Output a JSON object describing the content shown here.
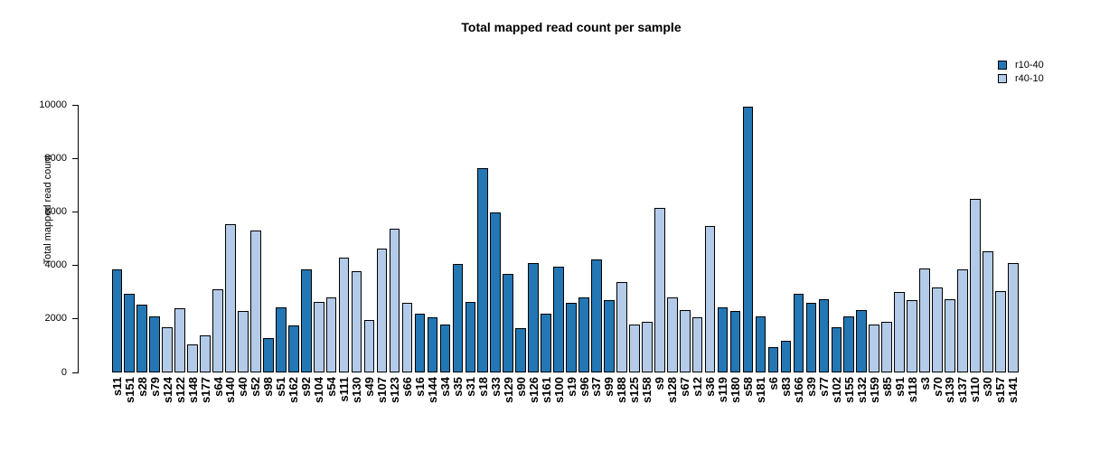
{
  "chart_data": {
    "type": "bar",
    "title": "Total mapped read count per sample",
    "xlabel": "",
    "ylabel": "Total mapped read count",
    "ylim": [
      0,
      10000
    ],
    "yticks": [
      0,
      2000,
      4000,
      6000,
      8000,
      10000
    ],
    "grid": false,
    "legend_position": "top-right",
    "bar_border_color": "#000000",
    "series": [
      {
        "name": "r10-40",
        "color": "#2377b4"
      },
      {
        "name": "r40-10",
        "color": "#b3cbe8"
      }
    ],
    "bars": [
      {
        "sample": "s11",
        "value": 3850,
        "series": "r10-40"
      },
      {
        "sample": "s151",
        "value": 2950,
        "series": "r10-40"
      },
      {
        "sample": "s28",
        "value": 2550,
        "series": "r10-40"
      },
      {
        "sample": "s79",
        "value": 2100,
        "series": "r10-40"
      },
      {
        "sample": "s124",
        "value": 1700,
        "series": "r40-10"
      },
      {
        "sample": "s122",
        "value": 2400,
        "series": "r40-10"
      },
      {
        "sample": "s148",
        "value": 1050,
        "series": "r40-10"
      },
      {
        "sample": "s177",
        "value": 1400,
        "series": "r40-10"
      },
      {
        "sample": "s64",
        "value": 3100,
        "series": "r40-10"
      },
      {
        "sample": "s140",
        "value": 5550,
        "series": "r40-10"
      },
      {
        "sample": "s40",
        "value": 2300,
        "series": "r40-10"
      },
      {
        "sample": "s52",
        "value": 5300,
        "series": "r40-10"
      },
      {
        "sample": "s98",
        "value": 1300,
        "series": "r10-40"
      },
      {
        "sample": "s51",
        "value": 2450,
        "series": "r10-40"
      },
      {
        "sample": "s162",
        "value": 1750,
        "series": "r10-40"
      },
      {
        "sample": "s92",
        "value": 3850,
        "series": "r10-40"
      },
      {
        "sample": "s104",
        "value": 2650,
        "series": "r40-10"
      },
      {
        "sample": "s54",
        "value": 2800,
        "series": "r40-10"
      },
      {
        "sample": "s111",
        "value": 4300,
        "series": "r40-10"
      },
      {
        "sample": "s130",
        "value": 3800,
        "series": "r40-10"
      },
      {
        "sample": "s49",
        "value": 1950,
        "series": "r40-10"
      },
      {
        "sample": "s107",
        "value": 4650,
        "series": "r40-10"
      },
      {
        "sample": "s123",
        "value": 5400,
        "series": "r40-10"
      },
      {
        "sample": "s66",
        "value": 2600,
        "series": "r40-10"
      },
      {
        "sample": "s16",
        "value": 2200,
        "series": "r10-40"
      },
      {
        "sample": "s144",
        "value": 2050,
        "series": "r10-40"
      },
      {
        "sample": "s34",
        "value": 1800,
        "series": "r10-40"
      },
      {
        "sample": "s35",
        "value": 4050,
        "series": "r10-40"
      },
      {
        "sample": "s31",
        "value": 2650,
        "series": "r10-40"
      },
      {
        "sample": "s18",
        "value": 7650,
        "series": "r10-40"
      },
      {
        "sample": "s33",
        "value": 6000,
        "series": "r10-40"
      },
      {
        "sample": "s129",
        "value": 3700,
        "series": "r10-40"
      },
      {
        "sample": "s90",
        "value": 1650,
        "series": "r10-40"
      },
      {
        "sample": "s126",
        "value": 4100,
        "series": "r10-40"
      },
      {
        "sample": "s161",
        "value": 2200,
        "series": "r10-40"
      },
      {
        "sample": "s100",
        "value": 3950,
        "series": "r10-40"
      },
      {
        "sample": "s19",
        "value": 2600,
        "series": "r10-40"
      },
      {
        "sample": "s96",
        "value": 2800,
        "series": "r10-40"
      },
      {
        "sample": "s37",
        "value": 4250,
        "series": "r10-40"
      },
      {
        "sample": "s99",
        "value": 2700,
        "series": "r10-40"
      },
      {
        "sample": "s188",
        "value": 3400,
        "series": "r40-10"
      },
      {
        "sample": "s125",
        "value": 1800,
        "series": "r40-10"
      },
      {
        "sample": "s158",
        "value": 1900,
        "series": "r40-10"
      },
      {
        "sample": "s9",
        "value": 6150,
        "series": "r40-10"
      },
      {
        "sample": "s128",
        "value": 2800,
        "series": "r40-10"
      },
      {
        "sample": "s67",
        "value": 2350,
        "series": "r40-10"
      },
      {
        "sample": "s12",
        "value": 2050,
        "series": "r40-10"
      },
      {
        "sample": "s36",
        "value": 5500,
        "series": "r40-10"
      },
      {
        "sample": "s119",
        "value": 2450,
        "series": "r10-40"
      },
      {
        "sample": "s180",
        "value": 2300,
        "series": "r10-40"
      },
      {
        "sample": "s58",
        "value": 9950,
        "series": "r10-40"
      },
      {
        "sample": "s181",
        "value": 2100,
        "series": "r10-40"
      },
      {
        "sample": "s6",
        "value": 950,
        "series": "r10-40"
      },
      {
        "sample": "s83",
        "value": 1200,
        "series": "r10-40"
      },
      {
        "sample": "s166",
        "value": 2950,
        "series": "r10-40"
      },
      {
        "sample": "s39",
        "value": 2600,
        "series": "r10-40"
      },
      {
        "sample": "s77",
        "value": 2750,
        "series": "r10-40"
      },
      {
        "sample": "s102",
        "value": 1700,
        "series": "r10-40"
      },
      {
        "sample": "s155",
        "value": 2100,
        "series": "r10-40"
      },
      {
        "sample": "s132",
        "value": 2350,
        "series": "r10-40"
      },
      {
        "sample": "s159",
        "value": 1800,
        "series": "r40-10"
      },
      {
        "sample": "s85",
        "value": 1900,
        "series": "r40-10"
      },
      {
        "sample": "s91",
        "value": 3000,
        "series": "r40-10"
      },
      {
        "sample": "s118",
        "value": 2700,
        "series": "r40-10"
      },
      {
        "sample": "s3",
        "value": 3900,
        "series": "r40-10"
      },
      {
        "sample": "s70",
        "value": 3200,
        "series": "r40-10"
      },
      {
        "sample": "s139",
        "value": 2750,
        "series": "r40-10"
      },
      {
        "sample": "s137",
        "value": 3850,
        "series": "r40-10"
      },
      {
        "sample": "s110",
        "value": 6500,
        "series": "r40-10"
      },
      {
        "sample": "s30",
        "value": 4550,
        "series": "r40-10"
      },
      {
        "sample": "s157",
        "value": 3050,
        "series": "r40-10"
      },
      {
        "sample": "s141",
        "value": 4100,
        "series": "r40-10"
      }
    ]
  }
}
